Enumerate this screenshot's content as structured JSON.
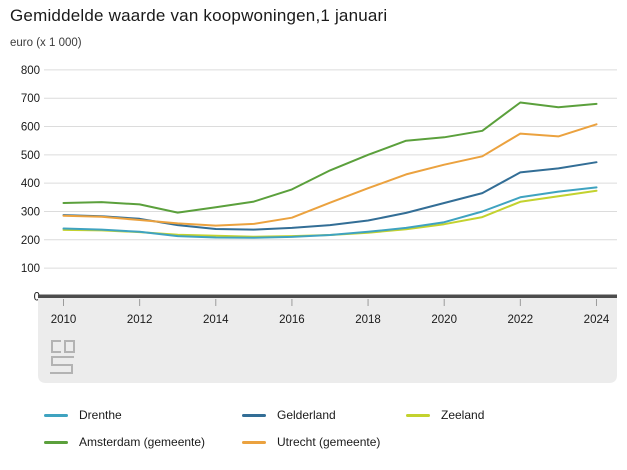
{
  "header": {
    "title": "Gemiddelde waarde van koopwoningen,1 januari",
    "unit_label": "euro (x 1 000)"
  },
  "chart_data": {
    "type": "line",
    "title": "Gemiddelde waarde van koopwoningen,1 januari",
    "ylabel": "euro (x 1 000)",
    "xlabel": "",
    "x": [
      2010,
      2011,
      2012,
      2013,
      2014,
      2015,
      2016,
      2017,
      2018,
      2019,
      2020,
      2021,
      2022,
      2023,
      2024
    ],
    "x_ticks": [
      2010,
      2012,
      2014,
      2016,
      2018,
      2020,
      2022,
      2024
    ],
    "y_ticks": [
      0,
      100,
      200,
      300,
      400,
      500,
      600,
      700,
      800
    ],
    "ylim": [
      0,
      800
    ],
    "grid": true,
    "legend_position": "bottom",
    "series": [
      {
        "name": "Drenthe",
        "color": "#3fa3c0",
        "values": [
          240,
          236,
          228,
          213,
          208,
          207,
          210,
          217,
          228,
          242,
          262,
          300,
          350,
          370,
          385
        ]
      },
      {
        "name": "Amsterdam (gemeente)",
        "color": "#5ba03c",
        "values": [
          330,
          333,
          325,
          296,
          315,
          335,
          378,
          445,
          500,
          550,
          562,
          585,
          685,
          668,
          680
        ]
      },
      {
        "name": "Gelderland",
        "color": "#336e96",
        "values": [
          287,
          283,
          274,
          252,
          238,
          236,
          242,
          252,
          268,
          295,
          330,
          365,
          438,
          452,
          474
        ]
      },
      {
        "name": "Utrecht (gemeente)",
        "color": "#eba23f",
        "values": [
          285,
          281,
          270,
          258,
          250,
          256,
          278,
          331,
          382,
          431,
          465,
          495,
          575,
          565,
          608
        ]
      },
      {
        "name": "Zeeland",
        "color": "#c3d22e",
        "values": [
          235,
          233,
          227,
          218,
          214,
          211,
          213,
          217,
          225,
          237,
          255,
          280,
          334,
          354,
          373
        ]
      }
    ],
    "colors": {
      "gridline": "#dcdcdc",
      "zero_axis": "#4c4c4c",
      "axis_band": "#ececec",
      "tick": "#9b9b9b",
      "tick_label": "#1a1a1a",
      "logo": "#b3b3b3"
    }
  }
}
